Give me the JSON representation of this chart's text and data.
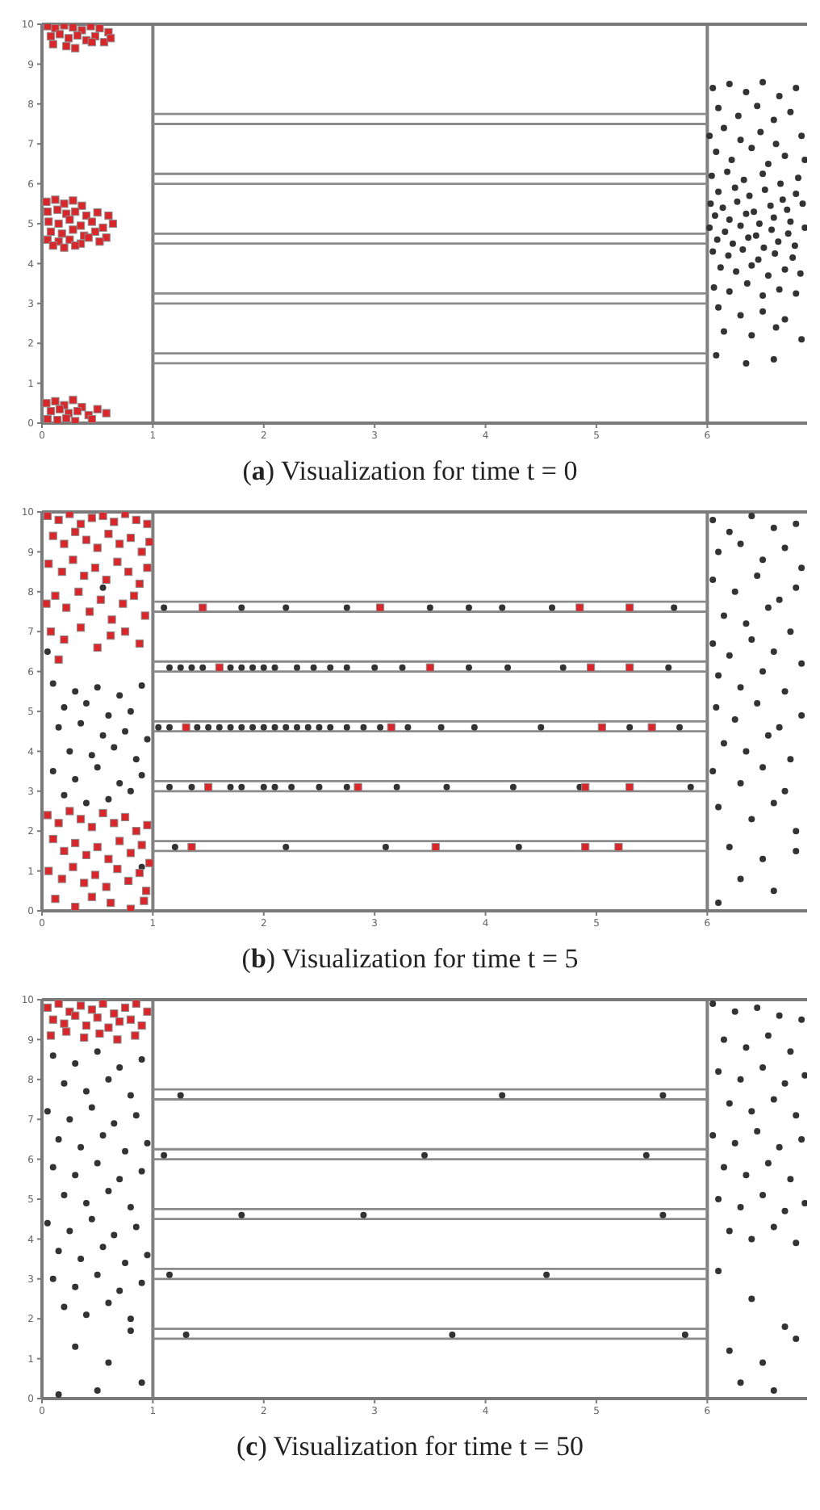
{
  "chart_data": [
    {
      "type": "scatter",
      "title": "(a) Visualization for time t = 0",
      "xlim": [
        0,
        6.9
      ],
      "ylim": [
        0,
        10
      ],
      "xticks": [
        0,
        1,
        2,
        3,
        4,
        5,
        6
      ],
      "yticks": [
        0,
        1,
        2,
        3,
        4,
        5,
        6,
        7,
        8,
        9,
        10
      ],
      "ref_lines": [
        {
          "axis": "x",
          "value": 1,
          "color": "#808080"
        },
        {
          "axis": "x",
          "value": 6,
          "color": "#808080"
        }
      ],
      "series": [
        {
          "type": "line",
          "color": "#8a8a8a",
          "marker": "none",
          "x": [
            1,
            6
          ],
          "values": [
            1.5,
            1.5
          ]
        },
        {
          "type": "line",
          "color": "#8a8a8a",
          "marker": "none",
          "x": [
            1,
            6
          ],
          "values": [
            1.75,
            1.75
          ]
        },
        {
          "type": "line",
          "color": "#8a8a8a",
          "marker": "none",
          "x": [
            1,
            6
          ],
          "values": [
            3,
            3
          ]
        },
        {
          "type": "line",
          "color": "#8a8a8a",
          "marker": "none",
          "x": [
            1,
            6
          ],
          "values": [
            3.25,
            3.25
          ]
        },
        {
          "type": "line",
          "color": "#8a8a8a",
          "marker": "none",
          "x": [
            1,
            6
          ],
          "values": [
            4.5,
            4.5
          ]
        },
        {
          "type": "line",
          "color": "#8a8a8a",
          "marker": "none",
          "x": [
            1,
            6
          ],
          "values": [
            4.75,
            4.75
          ]
        },
        {
          "type": "line",
          "color": "#8a8a8a",
          "marker": "none",
          "x": [
            1,
            6
          ],
          "values": [
            6,
            6
          ]
        },
        {
          "type": "line",
          "color": "#8a8a8a",
          "marker": "none",
          "x": [
            1,
            6
          ],
          "values": [
            6.25,
            6.25
          ]
        },
        {
          "type": "line",
          "color": "#8a8a8a",
          "marker": "none",
          "x": [
            1,
            6
          ],
          "values": [
            7.5,
            7.5
          ]
        },
        {
          "type": "line",
          "color": "#8a8a8a",
          "marker": "none",
          "x": [
            1,
            6
          ],
          "values": [
            7.75,
            7.75
          ]
        },
        {
          "color": "#d8262b",
          "marker": "square",
          "x": [
            0.05,
            0.12,
            0.2,
            0.28,
            0.36,
            0.44,
            0.52,
            0.6,
            0.08,
            0.16,
            0.24,
            0.32,
            0.4,
            0.48,
            0.56,
            0.1,
            0.22,
            0.3,
            0.45,
            0.62,
            0.04,
            0.12,
            0.2,
            0.28,
            0.36,
            0.05,
            0.14,
            0.22,
            0.3,
            0.4,
            0.5,
            0.6,
            0.06,
            0.15,
            0.25,
            0.35,
            0.45,
            0.55,
            0.64,
            0.08,
            0.18,
            0.28,
            0.38,
            0.48,
            0.58,
            0.05,
            0.15,
            0.25,
            0.35,
            0.42,
            0.52,
            0.1,
            0.2,
            0.3,
            0.04,
            0.12,
            0.2,
            0.28,
            0.36,
            0.08,
            0.16,
            0.24,
            0.32,
            0.42,
            0.5,
            0.58,
            0.05,
            0.14,
            0.22,
            0.3,
            0.45
          ],
          "values": [
            9.95,
            9.9,
            9.97,
            9.92,
            9.85,
            9.95,
            9.9,
            9.8,
            9.7,
            9.75,
            9.65,
            9.72,
            9.6,
            9.7,
            9.55,
            9.5,
            9.45,
            9.4,
            9.55,
            9.65,
            5.55,
            5.6,
            5.5,
            5.58,
            5.45,
            5.3,
            5.35,
            5.25,
            5.3,
            5.2,
            5.28,
            5.2,
            5.05,
            5.0,
            5.1,
            4.95,
            5.05,
            4.9,
            5.0,
            4.8,
            4.75,
            4.85,
            4.7,
            4.8,
            4.65,
            4.6,
            4.55,
            4.6,
            4.5,
            4.65,
            4.55,
            4.45,
            4.4,
            4.45,
            0.5,
            0.55,
            0.45,
            0.58,
            0.4,
            0.3,
            0.35,
            0.25,
            0.3,
            0.2,
            0.35,
            0.25,
            0.1,
            0.08,
            0.12,
            0.05,
            0.1
          ]
        },
        {
          "color": "#333333",
          "marker": "circle",
          "x": [
            6.05,
            6.2,
            6.35,
            6.5,
            6.65,
            6.8,
            6.1,
            6.28,
            6.45,
            6.6,
            6.75,
            6.02,
            6.15,
            6.3,
            6.48,
            6.62,
            6.85,
            6.08,
            6.22,
            6.4,
            6.55,
            6.7,
            6.88,
            6.04,
            6.18,
            6.33,
            6.5,
            6.66,
            6.82,
            6.1,
            6.25,
            6.38,
            6.52,
            6.68,
            6.8,
            6.03,
            6.14,
            6.27,
            6.42,
            6.57,
            6.72,
            6.86,
            6.07,
            6.2,
            6.35,
            6.47,
            6.6,
            6.75,
            6.02,
            6.16,
            6.3,
            6.44,
            6.58,
            6.73,
            6.88,
            6.09,
            6.23,
            6.37,
            6.51,
            6.64,
            6.79,
            6.05,
            6.19,
            6.32,
            6.46,
            6.61,
            6.77,
            6.12,
            6.26,
            6.4,
            6.55,
            6.7,
            6.84,
            6.06,
            6.2,
            6.36,
            6.5,
            6.65,
            6.8,
            6.1,
            6.3,
            6.5,
            6.7,
            6.15,
            6.4,
            6.62,
            6.85,
            6.08,
            6.35,
            6.6
          ],
          "values": [
            8.4,
            8.5,
            8.3,
            8.55,
            8.2,
            8.4,
            7.9,
            7.7,
            7.95,
            7.6,
            7.8,
            7.2,
            7.4,
            7.1,
            7.3,
            7.0,
            7.2,
            6.8,
            6.6,
            6.9,
            6.5,
            6.7,
            6.6,
            6.2,
            6.3,
            6.1,
            6.25,
            6.0,
            6.15,
            5.8,
            5.9,
            5.7,
            5.85,
            5.6,
            5.75,
            5.5,
            5.4,
            5.55,
            5.3,
            5.45,
            5.35,
            5.5,
            5.2,
            5.1,
            5.25,
            5.0,
            5.15,
            5.05,
            4.9,
            4.8,
            4.95,
            4.7,
            4.85,
            4.75,
            4.9,
            4.6,
            4.5,
            4.65,
            4.4,
            4.55,
            4.45,
            4.3,
            4.2,
            4.35,
            4.1,
            4.25,
            4.15,
            3.9,
            3.8,
            3.95,
            3.7,
            3.85,
            3.75,
            3.4,
            3.3,
            3.5,
            3.2,
            3.35,
            3.25,
            2.9,
            2.7,
            2.8,
            2.6,
            2.3,
            2.2,
            2.4,
            2.1,
            1.7,
            1.5,
            1.6
          ]
        }
      ]
    },
    {
      "type": "scatter",
      "title": "(b) Visualization for time t = 5",
      "xlim": [
        0,
        6.9
      ],
      "ylim": [
        0,
        10
      ],
      "xticks": [
        0,
        1,
        2,
        3,
        4,
        5,
        6
      ],
      "yticks": [
        0,
        1,
        2,
        3,
        4,
        5,
        6,
        7,
        8,
        9,
        10
      ],
      "ref_lines": [
        {
          "axis": "x",
          "value": 1,
          "color": "#808080"
        },
        {
          "axis": "x",
          "value": 6,
          "color": "#808080"
        }
      ],
      "series": [
        {
          "type": "line",
          "color": "#8a8a8a",
          "marker": "none",
          "x": [
            1,
            6
          ],
          "values": [
            1.5,
            1.5
          ]
        },
        {
          "type": "line",
          "color": "#8a8a8a",
          "marker": "none",
          "x": [
            1,
            6
          ],
          "values": [
            1.75,
            1.75
          ]
        },
        {
          "type": "line",
          "color": "#8a8a8a",
          "marker": "none",
          "x": [
            1,
            6
          ],
          "values": [
            3,
            3
          ]
        },
        {
          "type": "line",
          "color": "#8a8a8a",
          "marker": "none",
          "x": [
            1,
            6
          ],
          "values": [
            3.25,
            3.25
          ]
        },
        {
          "type": "line",
          "color": "#8a8a8a",
          "marker": "none",
          "x": [
            1,
            6
          ],
          "values": [
            4.5,
            4.5
          ]
        },
        {
          "type": "line",
          "color": "#8a8a8a",
          "marker": "none",
          "x": [
            1,
            6
          ],
          "values": [
            4.75,
            4.75
          ]
        },
        {
          "type": "line",
          "color": "#8a8a8a",
          "marker": "none",
          "x": [
            1,
            6
          ],
          "values": [
            6,
            6
          ]
        },
        {
          "type": "line",
          "color": "#8a8a8a",
          "marker": "none",
          "x": [
            1,
            6
          ],
          "values": [
            6.25,
            6.25
          ]
        },
        {
          "type": "line",
          "color": "#8a8a8a",
          "marker": "none",
          "x": [
            1,
            6
          ],
          "values": [
            7.5,
            7.5
          ]
        },
        {
          "type": "line",
          "color": "#8a8a8a",
          "marker": "none",
          "x": [
            1,
            6
          ],
          "values": [
            7.75,
            7.75
          ]
        },
        {
          "color": "#333333",
          "marker": "circle",
          "x": [
            0.1,
            0.3,
            0.5,
            0.7,
            0.9,
            0.2,
            0.4,
            0.6,
            0.8,
            0.15,
            0.35,
            0.55,
            0.75,
            0.95,
            0.25,
            0.45,
            0.65,
            0.85,
            0.1,
            0.3,
            0.5,
            0.7,
            0.9,
            0.2,
            0.6,
            0.8,
            0.4,
            0.05,
            0.55,
            0.9,
            1.1,
            1.8,
            2.2,
            2.75,
            3.5,
            3.85,
            4.15,
            4.6,
            5.7,
            1.15,
            1.25,
            1.35,
            1.45,
            1.7,
            1.8,
            1.9,
            2.0,
            2.1,
            2.3,
            2.45,
            2.6,
            2.75,
            3.0,
            3.25,
            3.85,
            4.2,
            4.7,
            5.65,
            1.05,
            1.15,
            1.4,
            1.5,
            1.6,
            1.7,
            1.8,
            1.9,
            2.0,
            2.1,
            2.2,
            2.3,
            2.4,
            2.5,
            2.6,
            2.75,
            2.9,
            3.05,
            3.3,
            3.6,
            3.9,
            4.5,
            5.3,
            5.75,
            1.15,
            1.35,
            1.7,
            1.8,
            2.0,
            2.1,
            2.25,
            2.5,
            2.75,
            3.2,
            3.65,
            4.25,
            4.85,
            5.85,
            1.2,
            2.2,
            3.1,
            4.3,
            6.05,
            6.2,
            6.4,
            6.6,
            6.8,
            6.1,
            6.3,
            6.5,
            6.7,
            6.85,
            6.05,
            6.25,
            6.45,
            6.65,
            6.8,
            6.15,
            6.35,
            6.55,
            6.75,
            6.05,
            6.2,
            6.4,
            6.6,
            6.85,
            6.1,
            6.3,
            6.5,
            6.7,
            6.08,
            6.25,
            6.45,
            6.65,
            6.85,
            6.15,
            6.35,
            6.55,
            6.75,
            6.05,
            6.3,
            6.5,
            6.7,
            6.1,
            6.4,
            6.6,
            6.8,
            6.2,
            6.5,
            6.8,
            6.3,
            6.6,
            6.1
          ],
          "values": [
            5.7,
            5.5,
            5.6,
            5.4,
            5.65,
            5.1,
            5.2,
            4.9,
            5.0,
            4.6,
            4.7,
            4.4,
            4.5,
            4.3,
            4.0,
            3.9,
            4.1,
            3.8,
            3.5,
            3.3,
            3.6,
            3.2,
            3.4,
            2.9,
            2.8,
            3.0,
            2.7,
            6.5,
            8.1,
            1.1,
            7.6,
            7.6,
            7.6,
            7.6,
            7.6,
            7.6,
            7.6,
            7.6,
            7.6,
            6.1,
            6.1,
            6.1,
            6.1,
            6.1,
            6.1,
            6.1,
            6.1,
            6.1,
            6.1,
            6.1,
            6.1,
            6.1,
            6.1,
            6.1,
            6.1,
            6.1,
            6.1,
            6.1,
            4.6,
            4.6,
            4.6,
            4.6,
            4.6,
            4.6,
            4.6,
            4.6,
            4.6,
            4.6,
            4.6,
            4.6,
            4.6,
            4.6,
            4.6,
            4.6,
            4.6,
            4.6,
            4.6,
            4.6,
            4.6,
            4.6,
            4.6,
            4.6,
            3.1,
            3.1,
            3.1,
            3.1,
            3.1,
            3.1,
            3.1,
            3.1,
            3.1,
            3.1,
            3.1,
            3.1,
            3.1,
            3.1,
            1.6,
            1.6,
            1.6,
            1.6,
            9.8,
            9.5,
            9.9,
            9.6,
            9.7,
            9.0,
            9.2,
            8.8,
            9.1,
            8.6,
            8.3,
            8.0,
            8.4,
            7.8,
            8.1,
            7.4,
            7.2,
            7.6,
            7.0,
            6.7,
            6.4,
            6.8,
            6.5,
            6.2,
            5.9,
            5.6,
            6.0,
            5.5,
            5.1,
            4.8,
            5.2,
            4.6,
            4.9,
            4.2,
            4.0,
            4.4,
            3.8,
            3.5,
            3.2,
            3.6,
            3.0,
            2.6,
            2.3,
            2.7,
            2.0,
            1.6,
            1.3,
            1.5,
            0.8,
            0.5,
            0.2
          ]
        },
        {
          "color": "#d8262b",
          "marker": "square",
          "x": [
            0.05,
            0.15,
            0.25,
            0.35,
            0.45,
            0.55,
            0.65,
            0.75,
            0.85,
            0.95,
            0.1,
            0.2,
            0.3,
            0.4,
            0.5,
            0.6,
            0.7,
            0.8,
            0.9,
            0.97,
            0.06,
            0.18,
            0.28,
            0.38,
            0.48,
            0.58,
            0.68,
            0.78,
            0.88,
            0.95,
            0.12,
            0.22,
            0.33,
            0.43,
            0.53,
            0.63,
            0.73,
            0.83,
            0.93,
            0.04,
            0.08,
            0.2,
            0.35,
            0.5,
            0.62,
            0.75,
            0.88,
            0.15,
            0.05,
            0.15,
            0.25,
            0.35,
            0.45,
            0.55,
            0.65,
            0.75,
            0.85,
            0.95,
            0.1,
            0.2,
            0.3,
            0.4,
            0.5,
            0.6,
            0.7,
            0.8,
            0.9,
            0.97,
            0.06,
            0.18,
            0.28,
            0.38,
            0.48,
            0.58,
            0.68,
            0.78,
            0.88,
            0.94,
            0.12,
            0.3,
            0.45,
            0.62,
            0.8,
            0.92,
            1.45,
            3.05,
            4.85,
            5.3,
            1.6,
            3.5,
            4.95,
            5.3,
            1.3,
            3.15,
            5.05,
            5.5,
            1.5,
            2.85,
            4.9,
            5.3,
            1.35,
            3.55,
            4.9,
            5.2
          ],
          "values": [
            9.9,
            9.8,
            9.95,
            9.7,
            9.85,
            9.9,
            9.75,
            9.95,
            9.8,
            9.7,
            9.4,
            9.2,
            9.5,
            9.3,
            9.1,
            9.45,
            9.2,
            9.35,
            9.0,
            9.25,
            8.7,
            8.5,
            8.8,
            8.4,
            8.6,
            8.3,
            8.75,
            8.5,
            8.2,
            8.6,
            7.9,
            7.6,
            8.0,
            7.5,
            7.8,
            7.3,
            7.7,
            7.9,
            7.4,
            7.7,
            7.0,
            6.8,
            7.1,
            6.6,
            6.9,
            7.0,
            6.7,
            6.3,
            2.4,
            2.2,
            2.5,
            2.3,
            2.1,
            2.45,
            2.2,
            2.35,
            2.0,
            2.15,
            1.8,
            1.5,
            1.7,
            1.4,
            1.6,
            1.3,
            1.75,
            1.45,
            1.65,
            1.2,
            1.0,
            0.8,
            1.1,
            0.7,
            0.9,
            0.6,
            1.05,
            0.75,
            0.95,
            0.5,
            0.3,
            0.1,
            0.35,
            0.2,
            0.05,
            0.25,
            7.6,
            7.6,
            7.6,
            7.6,
            6.1,
            6.1,
            6.1,
            6.1,
            4.6,
            4.6,
            4.6,
            4.6,
            3.1,
            3.1,
            3.1,
            3.1,
            1.6,
            1.6,
            1.6,
            1.6
          ]
        }
      ]
    },
    {
      "type": "scatter",
      "title": "(c) Visualization for time t = 50",
      "xlim": [
        0,
        6.9
      ],
      "ylim": [
        0,
        10
      ],
      "xticks": [
        0,
        1,
        2,
        3,
        4,
        5,
        6
      ],
      "yticks": [
        0,
        1,
        2,
        3,
        4,
        5,
        6,
        7,
        8,
        9,
        10
      ],
      "ref_lines": [
        {
          "axis": "x",
          "value": 1,
          "color": "#808080"
        },
        {
          "axis": "x",
          "value": 6,
          "color": "#808080"
        }
      ],
      "series": [
        {
          "type": "line",
          "color": "#8a8a8a",
          "marker": "none",
          "x": [
            1,
            6
          ],
          "values": [
            1.5,
            1.5
          ]
        },
        {
          "type": "line",
          "color": "#8a8a8a",
          "marker": "none",
          "x": [
            1,
            6
          ],
          "values": [
            1.75,
            1.75
          ]
        },
        {
          "type": "line",
          "color": "#8a8a8a",
          "marker": "none",
          "x": [
            1,
            6
          ],
          "values": [
            3,
            3
          ]
        },
        {
          "type": "line",
          "color": "#8a8a8a",
          "marker": "none",
          "x": [
            1,
            6
          ],
          "values": [
            3.25,
            3.25
          ]
        },
        {
          "type": "line",
          "color": "#8a8a8a",
          "marker": "none",
          "x": [
            1,
            6
          ],
          "values": [
            4.5,
            4.5
          ]
        },
        {
          "type": "line",
          "color": "#8a8a8a",
          "marker": "none",
          "x": [
            1,
            6
          ],
          "values": [
            4.75,
            4.75
          ]
        },
        {
          "type": "line",
          "color": "#8a8a8a",
          "marker": "none",
          "x": [
            1,
            6
          ],
          "values": [
            6,
            6
          ]
        },
        {
          "type": "line",
          "color": "#8a8a8a",
          "marker": "none",
          "x": [
            1,
            6
          ],
          "values": [
            6.25,
            6.25
          ]
        },
        {
          "type": "line",
          "color": "#8a8a8a",
          "marker": "none",
          "x": [
            1,
            6
          ],
          "values": [
            7.5,
            7.5
          ]
        },
        {
          "type": "line",
          "color": "#8a8a8a",
          "marker": "none",
          "x": [
            1,
            6
          ],
          "values": [
            7.75,
            7.75
          ]
        },
        {
          "color": "#333333",
          "marker": "circle",
          "x": [
            0.1,
            0.3,
            0.5,
            0.7,
            0.9,
            0.2,
            0.4,
            0.6,
            0.8,
            0.05,
            0.25,
            0.45,
            0.65,
            0.85,
            0.15,
            0.35,
            0.55,
            0.75,
            0.95,
            0.1,
            0.3,
            0.5,
            0.7,
            0.9,
            0.2,
            0.4,
            0.6,
            0.8,
            0.05,
            0.25,
            0.45,
            0.65,
            0.85,
            0.15,
            0.35,
            0.55,
            0.75,
            0.95,
            0.1,
            0.3,
            0.5,
            0.7,
            0.9,
            0.2,
            0.4,
            0.6,
            0.8,
            0.3,
            0.6,
            0.9,
            0.15,
            0.5,
            0.8,
            1.25,
            4.15,
            5.6,
            1.1,
            3.45,
            5.45,
            1.8,
            2.9,
            5.6,
            1.15,
            4.55,
            1.3,
            3.7,
            5.8,
            6.05,
            6.25,
            6.45,
            6.65,
            6.85,
            6.15,
            6.35,
            6.55,
            6.75,
            6.1,
            6.3,
            6.5,
            6.7,
            6.88,
            6.2,
            6.4,
            6.6,
            6.8,
            6.05,
            6.25,
            6.45,
            6.65,
            6.85,
            6.15,
            6.35,
            6.55,
            6.75,
            6.1,
            6.3,
            6.5,
            6.7,
            6.88,
            6.2,
            6.4,
            6.6,
            6.8,
            6.1,
            6.4,
            6.7,
            6.2,
            6.5,
            6.8,
            6.3,
            6.6
          ],
          "values": [
            8.6,
            8.4,
            8.7,
            8.3,
            8.5,
            7.9,
            7.7,
            8.0,
            7.6,
            7.2,
            7.0,
            7.3,
            6.9,
            7.1,
            6.5,
            6.3,
            6.6,
            6.2,
            6.4,
            5.8,
            5.6,
            5.9,
            5.5,
            5.7,
            5.1,
            4.9,
            5.2,
            4.8,
            4.4,
            4.2,
            4.5,
            4.1,
            4.3,
            3.7,
            3.5,
            3.8,
            3.4,
            3.6,
            3.0,
            2.8,
            3.1,
            2.7,
            2.9,
            2.3,
            2.1,
            2.4,
            2.0,
            1.3,
            0.9,
            0.4,
            0.1,
            0.2,
            1.7,
            7.6,
            7.6,
            7.6,
            6.1,
            6.1,
            6.1,
            4.6,
            4.6,
            4.6,
            3.1,
            3.1,
            1.6,
            1.6,
            1.6,
            9.9,
            9.7,
            9.8,
            9.6,
            9.5,
            9.0,
            8.8,
            9.1,
            8.7,
            8.2,
            8.0,
            8.3,
            7.9,
            8.1,
            7.4,
            7.2,
            7.5,
            7.1,
            6.6,
            6.4,
            6.7,
            6.3,
            6.5,
            5.8,
            5.6,
            5.9,
            5.5,
            5.0,
            4.8,
            5.1,
            4.7,
            4.9,
            4.2,
            4.0,
            4.3,
            3.9,
            3.2,
            2.5,
            1.8,
            1.2,
            0.9,
            1.5,
            0.4,
            0.2
          ]
        },
        {
          "color": "#d8262b",
          "marker": "square",
          "x": [
            0.05,
            0.15,
            0.25,
            0.35,
            0.45,
            0.55,
            0.65,
            0.75,
            0.85,
            0.95,
            0.1,
            0.2,
            0.3,
            0.4,
            0.5,
            0.6,
            0.7,
            0.8,
            0.9,
            0.08,
            0.22,
            0.38,
            0.52,
            0.68,
            0.84
          ],
          "values": [
            9.8,
            9.9,
            9.7,
            9.85,
            9.75,
            9.9,
            9.65,
            9.8,
            9.9,
            9.7,
            9.5,
            9.4,
            9.6,
            9.35,
            9.55,
            9.3,
            9.45,
            9.5,
            9.35,
            9.1,
            9.2,
            9.05,
            9.15,
            9.0,
            9.1
          ]
        }
      ]
    }
  ]
}
